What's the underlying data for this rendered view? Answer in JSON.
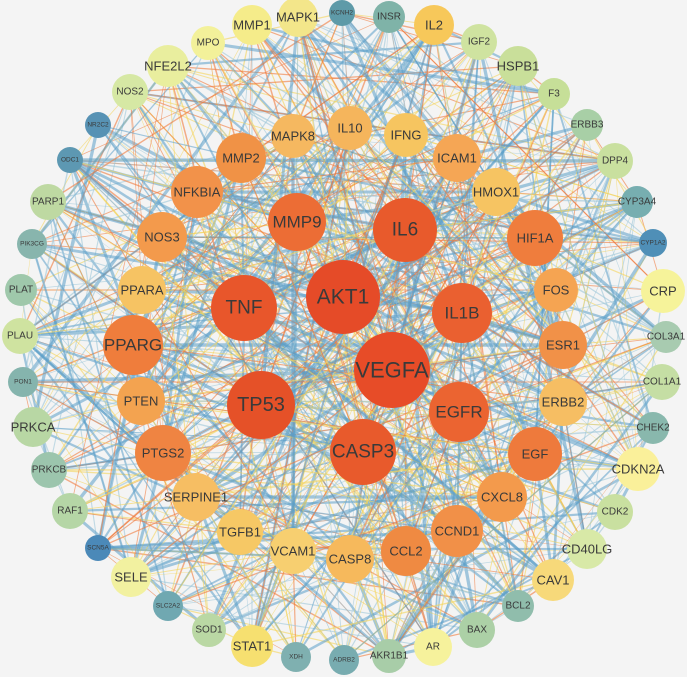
{
  "nodes": [
    {
      "label": "MAPK1"
    },
    {
      "label": "KCNH2"
    },
    {
      "label": "INSR"
    },
    {
      "label": "IL2"
    },
    {
      "label": "IGF2"
    },
    {
      "label": "HSPB1"
    },
    {
      "label": "F3"
    },
    {
      "label": "ERBB3"
    },
    {
      "label": "DPP4"
    },
    {
      "label": "CYP3A4"
    },
    {
      "label": "CYP1A2"
    },
    {
      "label": "CRP"
    },
    {
      "label": "COL3A1"
    },
    {
      "label": "COL1A1"
    },
    {
      "label": "CHEK2"
    },
    {
      "label": "CDKN2A"
    },
    {
      "label": "CDK2"
    },
    {
      "label": "CD40LG"
    },
    {
      "label": "CAV1"
    },
    {
      "label": "BCL2"
    },
    {
      "label": "BAX"
    },
    {
      "label": "AR"
    },
    {
      "label": "AKR1B1"
    },
    {
      "label": "ADRB2"
    },
    {
      "label": "XDH"
    },
    {
      "label": "STAT1"
    },
    {
      "label": "SOD1"
    },
    {
      "label": "SLC2A2"
    },
    {
      "label": "SELE"
    },
    {
      "label": "SCN5A"
    },
    {
      "label": "RAF1"
    },
    {
      "label": "PRKCB"
    },
    {
      "label": "PRKCA"
    },
    {
      "label": "PON1"
    },
    {
      "label": "PLAU"
    },
    {
      "label": "PLAT"
    },
    {
      "label": "PIK3CG"
    },
    {
      "label": "PARP1"
    },
    {
      "label": "ODC1"
    },
    {
      "label": "NR2C2"
    },
    {
      "label": "NOS2"
    },
    {
      "label": "NFE2L2"
    },
    {
      "label": "MPO"
    },
    {
      "label": "MMP1"
    },
    {
      "label": "MAPK8"
    },
    {
      "label": "IL10"
    },
    {
      "label": "IFNG"
    },
    {
      "label": "ICAM1"
    },
    {
      "label": "HMOX1"
    },
    {
      "label": "HIF1A"
    },
    {
      "label": "FOS"
    },
    {
      "label": "ESR1"
    },
    {
      "label": "ERBB2"
    },
    {
      "label": "EGF"
    },
    {
      "label": "CXCL8"
    },
    {
      "label": "CCND1"
    },
    {
      "label": "CCL2"
    },
    {
      "label": "CASP8"
    },
    {
      "label": "VCAM1"
    },
    {
      "label": "TGFB1"
    },
    {
      "label": "SERPINE1"
    },
    {
      "label": "PTGS2"
    },
    {
      "label": "PTEN"
    },
    {
      "label": "PPARG"
    },
    {
      "label": "PPARA"
    },
    {
      "label": "NOS3"
    },
    {
      "label": "NFKBIA"
    },
    {
      "label": "MMP2"
    },
    {
      "label": "IL6"
    },
    {
      "label": "MMP9"
    },
    {
      "label": "AKT1"
    },
    {
      "label": "TNF"
    },
    {
      "label": "IL1B"
    },
    {
      "label": "VEGFA"
    },
    {
      "label": "TP53"
    },
    {
      "label": "EGFR"
    },
    {
      "label": "CASP3"
    }
  ]
}
